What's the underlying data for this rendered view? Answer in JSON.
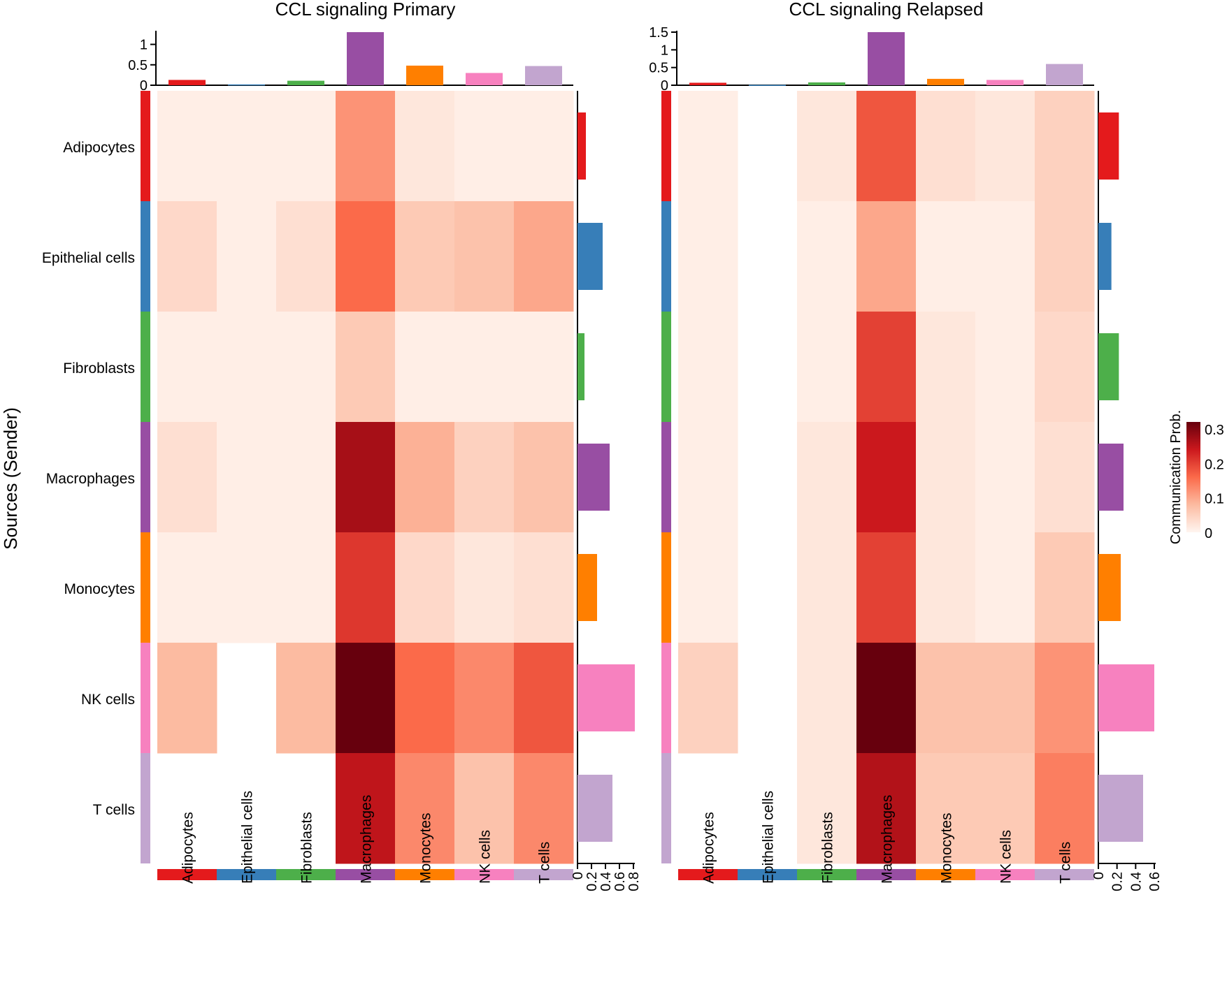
{
  "chart_data": {
    "type": "heatmap",
    "cell_types": [
      "Adipocytes",
      "Epithelial cells",
      "Fibroblasts",
      "Macrophages",
      "Monocytes",
      "NK cells",
      "T cells"
    ],
    "cell_colors": [
      "#e41a1c",
      "#377eb8",
      "#4daf4a",
      "#984ea3",
      "#ff7f00",
      "#f781bf",
      "#c2a5cf"
    ],
    "y_title": "Sources (Sender)",
    "legend": {
      "title": "Communication Prob.",
      "ticks": [
        "0.3",
        "0.2",
        "0.1",
        "0"
      ],
      "min": 0,
      "max": 0.32,
      "colors": [
        "#fff5f0",
        "#fcbba1",
        "#fb6a4a",
        "#cb181d",
        "#67000d"
      ]
    },
    "panels": [
      {
        "title": "CCL signaling  Primary",
        "top_axis": {
          "ticks": [
            0,
            0.5,
            1
          ],
          "labels": [
            "0",
            "0.5",
            "1"
          ],
          "max": 1.3
        },
        "right_axis": {
          "ticks": [
            0,
            0.2,
            0.4,
            0.6,
            0.8
          ],
          "labels": [
            "0",
            "0.2",
            "0.4",
            "0.6",
            "0.8"
          ],
          "max": 0.8
        },
        "top_bars": [
          0.13,
          0.02,
          0.11,
          1.3,
          0.48,
          0.3,
          0.47
        ],
        "right_bars": [
          0.12,
          0.36,
          0.1,
          0.46,
          0.28,
          0.82,
          0.5
        ],
        "matrix": [
          [
            0.01,
            0.01,
            0.01,
            0.12,
            0.02,
            0.01,
            0.01
          ],
          [
            0.04,
            0.01,
            0.03,
            0.16,
            0.06,
            0.07,
            0.1
          ],
          [
            0.01,
            0.01,
            0.01,
            0.06,
            0.01,
            0.01,
            0.01
          ],
          [
            0.03,
            0.01,
            0.01,
            0.27,
            0.09,
            0.05,
            0.07
          ],
          [
            0.01,
            0.01,
            0.01,
            0.21,
            0.04,
            0.02,
            0.03
          ],
          [
            0.08,
            null,
            0.08,
            0.32,
            0.16,
            0.13,
            0.18
          ],
          [
            null,
            null,
            null,
            0.25,
            0.13,
            0.07,
            0.13
          ]
        ]
      },
      {
        "title": "CCL signaling  Relapsed",
        "top_axis": {
          "ticks": [
            0,
            0.5,
            1,
            1.5
          ],
          "labels": [
            "0",
            "0.5",
            "1",
            "1.5"
          ],
          "max": 1.5
        },
        "right_axis": {
          "ticks": [
            0,
            0.2,
            0.4,
            0.6
          ],
          "labels": [
            "0",
            "0.2",
            "0.4",
            "0.6"
          ],
          "max": 0.6
        },
        "top_bars": [
          0.07,
          0.01,
          0.08,
          1.5,
          0.18,
          0.15,
          0.6
        ],
        "right_bars": [
          0.22,
          0.14,
          0.22,
          0.27,
          0.24,
          0.6,
          0.48
        ],
        "matrix": [
          [
            0.01,
            null,
            0.02,
            0.18,
            0.03,
            0.02,
            0.05
          ],
          [
            0.01,
            null,
            0.01,
            0.1,
            0.01,
            0.01,
            0.05
          ],
          [
            0.01,
            null,
            0.01,
            0.2,
            0.02,
            0.01,
            0.04
          ],
          [
            0.01,
            null,
            0.02,
            0.24,
            0.02,
            0.01,
            0.03
          ],
          [
            0.01,
            null,
            0.02,
            0.2,
            0.02,
            0.01,
            0.06
          ],
          [
            0.05,
            null,
            0.02,
            0.32,
            0.07,
            0.07,
            0.12
          ],
          [
            null,
            null,
            0.02,
            0.26,
            0.06,
            0.06,
            0.14
          ]
        ]
      }
    ]
  }
}
